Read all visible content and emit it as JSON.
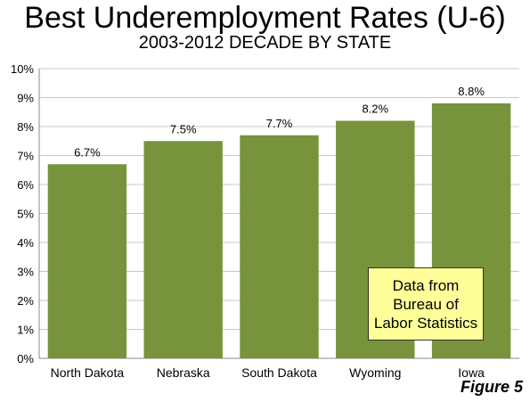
{
  "chart_data": {
    "type": "bar",
    "title": "Best Underemployment Rates (U-6)",
    "subtitle": "2003-2012 DECADE BY STATE",
    "categories": [
      "North Dakota",
      "Nebraska",
      "South Dakota",
      "Wyoming",
      "Iowa"
    ],
    "values": [
      6.7,
      7.5,
      7.7,
      8.2,
      8.8
    ],
    "data_labels": [
      "6.7%",
      "7.5%",
      "7.7%",
      "8.2%",
      "8.8%"
    ],
    "yticks": [
      "0%",
      "1%",
      "2%",
      "3%",
      "4%",
      "5%",
      "6%",
      "7%",
      "8%",
      "9%",
      "10%"
    ],
    "ylim": [
      0,
      10
    ],
    "xlabel": "",
    "ylabel": "",
    "grid": true,
    "bar_color": "#77933c"
  },
  "note": {
    "lines": [
      "Data from",
      "Bureau of",
      "Labor Statistics"
    ],
    "bg_color": "#ffff99"
  },
  "figure_label": "Figure 5"
}
